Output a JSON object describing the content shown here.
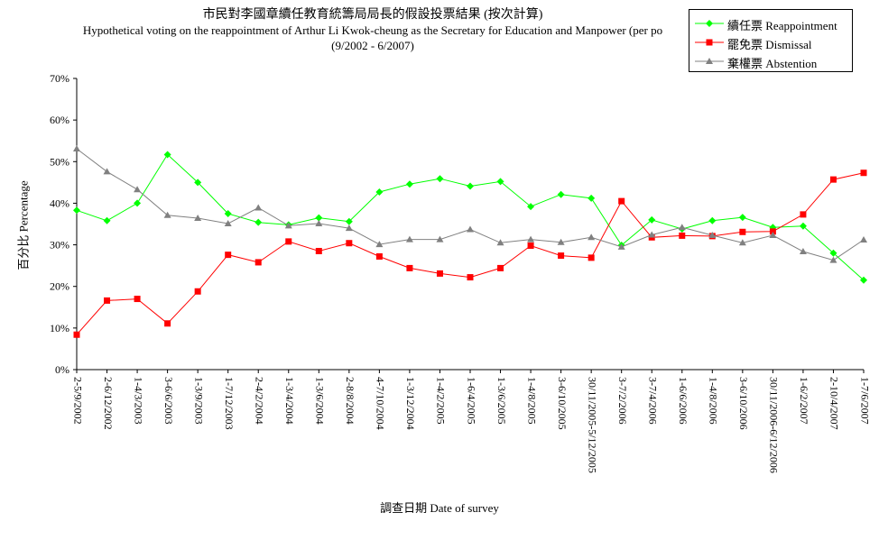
{
  "chart_data": {
    "type": "line",
    "title": "市民對李國章續任教育統籌局局長的假設投票結果 (按次計算)",
    "subtitle": "Hypothetical voting on the reappointment of Arthur Li Kwok-cheung as the Secretary for Education and Manpower (per po",
    "subtitle2": "(9/2002 - 6/2007)",
    "xlabel": "調查日期 Date of survey",
    "ylabel": "百分比 Percentage",
    "ylim": [
      0,
      70
    ],
    "yticks": [
      "0%",
      "10%",
      "20%",
      "30%",
      "40%",
      "50%",
      "60%",
      "70%"
    ],
    "grid": false,
    "legend_position": "top-right",
    "categories": [
      "2-5/9/2002",
      "2-6/12/2002",
      "1-4/3/2003",
      "3-6/6/2003",
      "1-3/9/2003",
      "1-7/12/2003",
      "2-4/2/2004",
      "1-3/4/2004",
      "1-3/6/2004",
      "2-8/8/2004",
      "4-7/10/2004",
      "1-3/12/2004",
      "1-4/2/2005",
      "1-6/4/2005",
      "1-3/6/2005",
      "1-4/8/2005",
      "3-6/10/2005",
      "30/11/2005-5/12/2005",
      "3-7/2/2006",
      "3-7/4/2006",
      "1-6/6/2006",
      "1-4/8/2006",
      "3-6/10/2006",
      "30/11/2006-6/12/2006",
      "1-6/2/2007",
      "2-10/4/2007",
      "1-7/6/2007"
    ],
    "series": [
      {
        "name": "續任票 Reappointment",
        "color": "#00ff00",
        "marker": "diamond",
        "values": [
          38.3,
          35.8,
          40.0,
          51.7,
          45.0,
          37.5,
          35.4,
          34.8,
          36.5,
          35.6,
          42.7,
          44.6,
          45.9,
          44.1,
          45.2,
          39.2,
          42.1,
          41.2,
          29.9,
          36.0,
          33.8,
          35.8,
          36.6,
          34.2,
          34.5,
          28.0,
          21.5
        ]
      },
      {
        "name": "罷免票 Dismissal",
        "color": "#ff0000",
        "marker": "square",
        "values": [
          8.4,
          16.6,
          17.0,
          11.1,
          18.8,
          27.6,
          25.8,
          30.8,
          28.5,
          30.4,
          27.2,
          24.4,
          23.1,
          22.2,
          24.4,
          29.8,
          27.4,
          26.9,
          40.5,
          31.8,
          32.2,
          32.1,
          33.1,
          33.2,
          37.3,
          45.7,
          47.3
        ]
      },
      {
        "name": "棄權票 Abstention",
        "color": "#808080",
        "marker": "triangle",
        "values": [
          53.1,
          47.6,
          43.3,
          37.1,
          36.4,
          35.1,
          38.9,
          34.6,
          35.1,
          34.0,
          30.1,
          31.3,
          31.3,
          33.7,
          30.5,
          31.3,
          30.6,
          31.8,
          29.5,
          32.4,
          34.2,
          32.3,
          30.5,
          32.3,
          28.4,
          26.3,
          31.2
        ]
      }
    ]
  }
}
